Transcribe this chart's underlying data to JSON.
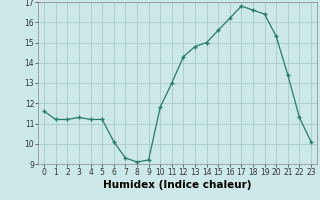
{
  "x": [
    0,
    1,
    2,
    3,
    4,
    5,
    6,
    7,
    8,
    9,
    10,
    11,
    12,
    13,
    14,
    15,
    16,
    17,
    18,
    19,
    20,
    21,
    22,
    23
  ],
  "y": [
    11.6,
    11.2,
    11.2,
    11.3,
    11.2,
    11.2,
    10.1,
    9.3,
    9.1,
    9.2,
    11.8,
    13.0,
    14.3,
    14.8,
    15.0,
    15.6,
    16.2,
    16.8,
    16.6,
    16.4,
    15.3,
    13.4,
    11.3,
    10.1
  ],
  "line_color": "#2a7a6a",
  "marker": "+",
  "marker_size": 3.5,
  "marker_linewidth": 1.0,
  "background_color": "#cce8e8",
  "grid_color": "#aacaca",
  "xlabel": "Humidex (Indice chaleur)",
  "ylim": [
    9,
    17
  ],
  "xlim": [
    -0.5,
    23.5
  ],
  "yticks": [
    9,
    10,
    11,
    12,
    13,
    14,
    15,
    16,
    17
  ],
  "xticks": [
    0,
    1,
    2,
    3,
    4,
    5,
    6,
    7,
    8,
    9,
    10,
    11,
    12,
    13,
    14,
    15,
    16,
    17,
    18,
    19,
    20,
    21,
    22,
    23
  ],
  "tick_fontsize": 5.5,
  "xlabel_fontsize": 7.5,
  "xlabel_fontweight": "bold"
}
